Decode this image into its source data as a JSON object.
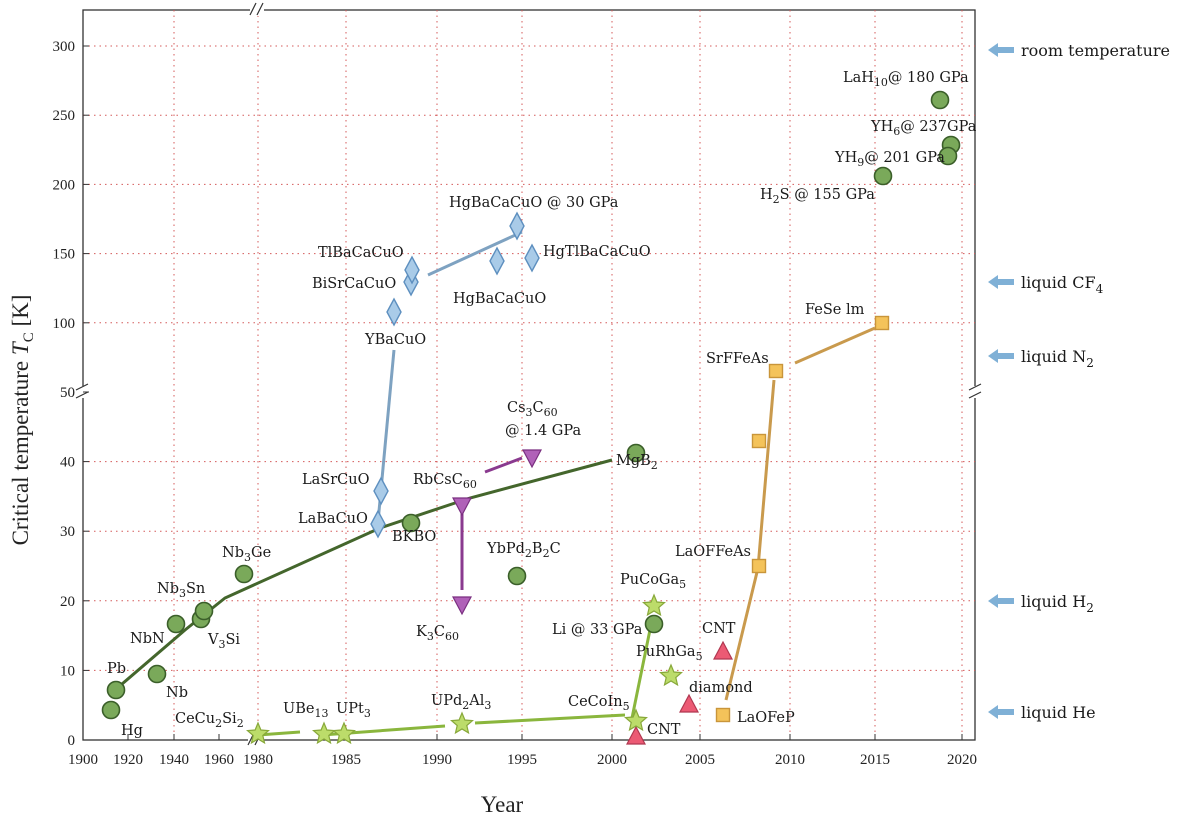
{
  "chart_data": {
    "type": "scatter",
    "xlabel": "Year",
    "ylabel": "Critical temperature",
    "ylabel_symbol": "T",
    "ylabel_sub": "C",
    "ylabel_unit": "[K]",
    "xlim": [
      1900,
      2022
    ],
    "ylim_upper": [
      50,
      310
    ],
    "ylim_lower": [
      0,
      50
    ],
    "x_ticks": [
      1900,
      1920,
      1940,
      1960,
      1980,
      2000,
      2020
    ],
    "x_ticks_labeled": [
      "1900",
      "1940",
      "1980",
      "1990",
      "1995",
      "2000",
      "2005",
      "2010",
      "2015",
      "2020"
    ],
    "y_ticks_upper": [
      "300",
      "250",
      "200",
      "150",
      "100",
      "50"
    ],
    "y_ticks_lower": [
      "40",
      "30",
      "20",
      "10",
      "0"
    ],
    "grid": true,
    "series": [
      {
        "group": "conventional",
        "color": "#7aa95a",
        "marker": "circle",
        "points": [
          {
            "x": 1913,
            "y": 4.2,
            "label": "Hg"
          },
          {
            "x": 1914,
            "y": 7.2,
            "label": "Pb"
          },
          {
            "x": 1930,
            "y": 9.3,
            "label": "Nb"
          },
          {
            "x": 1941,
            "y": 16.1,
            "label": "NbN"
          },
          {
            "x": 1953,
            "y": 17.1,
            "label": "V₃Si"
          },
          {
            "x": 1954,
            "y": 18.3,
            "label": "Nb₃Sn"
          },
          {
            "x": 1973,
            "y": 23.2,
            "label": "Nb₃Ge"
          },
          {
            "x": 1988,
            "y": 30.0,
            "label": "BKBO"
          },
          {
            "x": 1994,
            "y": 23.0,
            "label": "YbPd₂B₂C"
          },
          {
            "x": 2001,
            "y": 39.0,
            "label": "MgB₂"
          },
          {
            "x": 2002,
            "y": 16.0,
            "label": "Li @ 33 GPa"
          },
          {
            "x": 2015,
            "y": 203,
            "label": "H₂S @ 155 GPa"
          },
          {
            "x": 2018,
            "y": 260,
            "label": "LaH₁₀ @ 180 GPa"
          },
          {
            "x": 2019,
            "y": 243,
            "label": "YH₆ @ 237 GPa"
          },
          {
            "x": 2019,
            "y": 243,
            "label": "YH₉ @ 201 GPa"
          }
        ]
      },
      {
        "group": "cuprates",
        "color": "#a9cbe8",
        "marker": "diamond",
        "points": [
          {
            "x": 1986,
            "y": 30,
            "label": "LaBaCuO"
          },
          {
            "x": 1987,
            "y": 35,
            "label": "LaSrCuO"
          },
          {
            "x": 1987,
            "y": 92,
            "label": "YBaCuO"
          },
          {
            "x": 1988,
            "y": 110,
            "label": "BiSrCaCuO"
          },
          {
            "x": 1988,
            "y": 125,
            "label": "TlBaCaCuO"
          },
          {
            "x": 1993,
            "y": 133,
            "label": "HgBaCaCuO"
          },
          {
            "x": 1994,
            "y": 164,
            "label": "HgBaCaCuO @ 30 GPa"
          },
          {
            "x": 1995,
            "y": 138,
            "label": "HgTlBaCaCuO"
          }
        ]
      },
      {
        "group": "fullerides",
        "color": "#b061b8",
        "marker": "triangle-down",
        "points": [
          {
            "x": 1991,
            "y": 18,
            "label": "K₃C₆₀"
          },
          {
            "x": 1991,
            "y": 33,
            "label": "RbCsC₆₀"
          },
          {
            "x": 1995,
            "y": 38,
            "label": "Cs₃C₆₀ @ 1.4 GPa"
          }
        ]
      },
      {
        "group": "heavy-fermion",
        "color": "#bcdc6a",
        "marker": "star",
        "points": [
          {
            "x": 1979,
            "y": 0.6,
            "label": "CeCu₂Si₂"
          },
          {
            "x": 1983,
            "y": 0.9,
            "label": "UBe₁₃"
          },
          {
            "x": 1984,
            "y": 0.5,
            "label": "UPt₃"
          },
          {
            "x": 1991,
            "y": 2.0,
            "label": "UPd₂Al₃"
          },
          {
            "x": 2001,
            "y": 2.3,
            "label": "CeCoIn₅"
          },
          {
            "x": 2002,
            "y": 18.5,
            "label": "PuCoGa₅"
          },
          {
            "x": 2003,
            "y": 8.7,
            "label": "PuRhGa₅"
          }
        ]
      },
      {
        "group": "carbon",
        "color": "#ec5a74",
        "marker": "triangle-up",
        "points": [
          {
            "x": 2001,
            "y": 0.4,
            "label": "CNT"
          },
          {
            "x": 2004,
            "y": 4,
            "label": "diamond"
          },
          {
            "x": 2006,
            "y": 12,
            "label": "CNT"
          }
        ]
      },
      {
        "group": "iron-based",
        "color": "#f4c35a",
        "marker": "square",
        "points": [
          {
            "x": 2006,
            "y": 4,
            "label": "LaOFeP"
          },
          {
            "x": 2008,
            "y": 26,
            "label": "LaOFFeAs"
          },
          {
            "x": 2008,
            "y": 43,
            "label": ""
          },
          {
            "x": 2008,
            "y": 55,
            "label": "SrFFeAs"
          },
          {
            "x": 2014,
            "y": 100,
            "label": "FeSe lm"
          }
        ]
      }
    ],
    "reference_lines": [
      {
        "label": "room temperature",
        "y": 295
      },
      {
        "label": "liquid CF₄",
        "y": 145
      },
      {
        "label": "liquid N₂",
        "y": 77
      },
      {
        "label": "liquid H₂",
        "y": 20
      },
      {
        "label": "liquid He",
        "y": 4.2
      }
    ]
  },
  "texts": {
    "ref_room": "room temperature",
    "ref_cf4": "liquid CF",
    "ref_cf4_sub": "4",
    "ref_n2": "liquid N",
    "ref_n2_sub": "2",
    "ref_h2": "liquid H",
    "ref_h2_sub": "2",
    "ref_he": "liquid He"
  },
  "colors": {
    "conventional": "#7aa95a",
    "conventional_edge": "#3b5f2a",
    "cuprate": "#a9cbe8",
    "cuprate_edge": "#5d8fbf",
    "fulleride": "#b061b8",
    "heavy_fermion": "#bcdc6a",
    "carbon": "#ec5a74",
    "iron": "#f4c35a",
    "line_green": "#44662c",
    "line_blue": "#7ea2c1",
    "line_purple": "#8a3a8f",
    "line_lightgreen": "#8ab63d",
    "line_orange": "#c99a4d",
    "arrow": "#7fb0d6",
    "grid": "#d45a5a"
  }
}
